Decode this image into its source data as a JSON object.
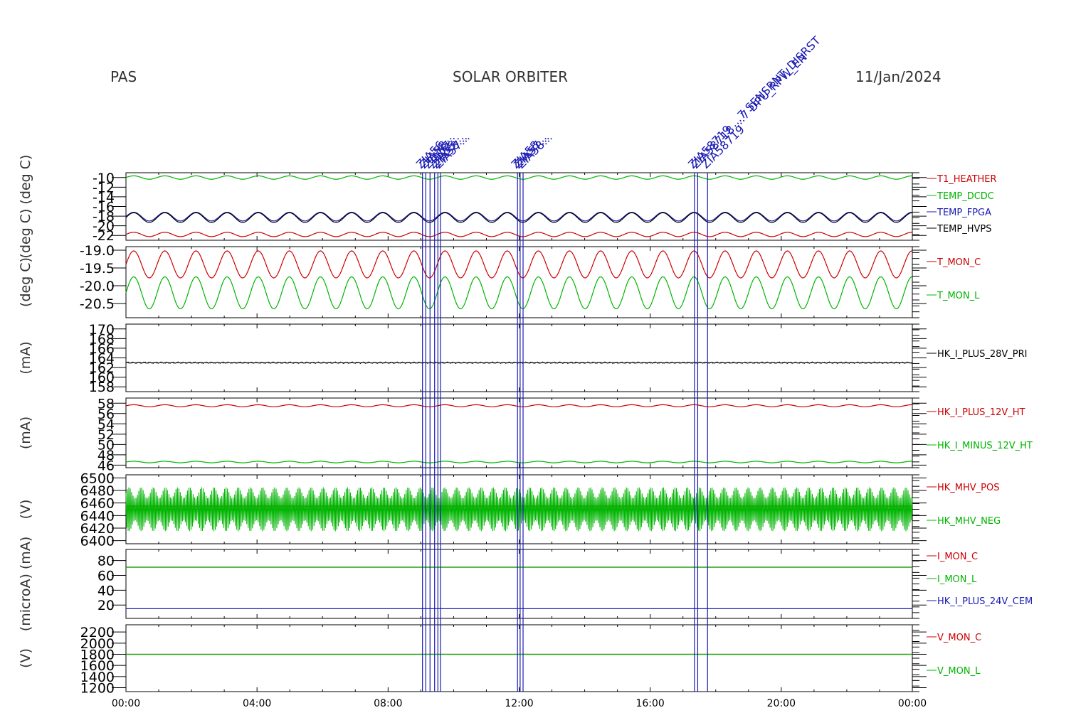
{
  "header": {
    "left": "PAS",
    "center": "SOLAR ORBITER",
    "right": "11/Jan/2024"
  },
  "colors": {
    "red": "#cc0000",
    "green": "#00b400",
    "blue": "#1a1ab4",
    "black": "#000000"
  },
  "chart_data": {
    "type": "line",
    "x_axis": {
      "label": "",
      "ticks": [
        "00:00",
        "04:00",
        "08:00",
        "12:00",
        "16:00",
        "20:00",
        "00:00"
      ],
      "range_hours": [
        0,
        24
      ]
    },
    "event_markers": {
      "color": "#1a1ab4",
      "times_hours": [
        9.05,
        9.15,
        9.28,
        9.42,
        9.52,
        9.6,
        11.95,
        12.03,
        12.12,
        17.35,
        17.45,
        17.75
      ],
      "labels": [
        "ZIA56...",
        "ZIA58...",
        "ZIA57...",
        "ZIA55...",
        "ZIA58...",
        "ZIA57...",
        "ZIA58...",
        "ZIA57...",
        "ZIA58...",
        "ZIA58719 ...7 SENSRNT_DISRST",
        "ZIA58718 ...7 DPU_RPW_EN",
        "ZIA58719"
      ]
    },
    "panels": [
      {
        "ylabel": "(deg C) (deg C)",
        "y_ticks": [
          "-10",
          "-12",
          "-14",
          "-16",
          "-18",
          "-20",
          "-22"
        ],
        "y_range": [
          -23,
          -9
        ],
        "series": [
          {
            "name": "T1_HEATHER",
            "color": "#cc0000",
            "mean": -21.8,
            "amp": 0.45,
            "period_h": 0.95
          },
          {
            "name": "TEMP_DCDC",
            "color": "#00b400",
            "mean": -10.0,
            "amp": 0.35,
            "period_h": 0.95
          },
          {
            "name": "TEMP_FPGA",
            "color": "#1a1ab4",
            "mean": -18.1,
            "amp": 0.9,
            "period_h": 0.95
          },
          {
            "name": "TEMP_HVPS",
            "color": "#000000",
            "mean": -18.3,
            "amp": 1.0,
            "period_h": 0.95
          }
        ]
      },
      {
        "ylabel": "(deg C)",
        "y_ticks": [
          "-19.0",
          "-19.5",
          "-20.0",
          "-20.5"
        ],
        "y_range": [
          -20.9,
          -18.9
        ],
        "series": [
          {
            "name": "T_MON_C",
            "color": "#cc0000",
            "mean": -19.4,
            "amp": 0.38,
            "period_h": 0.95
          },
          {
            "name": "T_MON_L",
            "color": "#00b400",
            "mean": -20.2,
            "amp": 0.45,
            "period_h": 0.95
          }
        ]
      },
      {
        "ylabel": "(mA)",
        "y_ticks": [
          "170",
          "168",
          "166",
          "164",
          "162",
          "160",
          "158"
        ],
        "y_range": [
          157,
          171
        ],
        "series": [
          {
            "name": "HK_I_PLUS_28V_PRI",
            "color": "#000000",
            "mean": 163.0,
            "amp": 0.15,
            "period_h": 0.3
          }
        ]
      },
      {
        "ylabel": "(mA)",
        "y_ticks": [
          "58",
          "56",
          "54",
          "52",
          "50",
          "48",
          "46"
        ],
        "y_range": [
          45.5,
          59
        ],
        "series": [
          {
            "name": "HK_I_PLUS_12V_HT",
            "color": "#cc0000",
            "mean": 57.5,
            "amp": 0.2,
            "period_h": 0.95
          },
          {
            "name": "HK_I_MINUS_12V_HT",
            "color": "#00b400",
            "mean": 46.6,
            "amp": 0.15,
            "period_h": 0.95
          }
        ]
      },
      {
        "ylabel": "(V)",
        "y_ticks": [
          "6500",
          "6480",
          "6460",
          "6440",
          "6420",
          "6400"
        ],
        "y_range": [
          6395,
          6505
        ],
        "series": [
          {
            "name": "HK_MHV_POS",
            "color": "#cc0000",
            "mean": 6455,
            "amp": 0,
            "period_h": 1
          },
          {
            "name": "HK_MHV_NEG",
            "color": "#00b400",
            "mean": 6450,
            "amp": 35,
            "period_h": 0.05
          }
        ]
      },
      {
        "ylabel": "(microA) (mA)",
        "y_ticks": [
          "80",
          "60",
          "40",
          "20"
        ],
        "y_range": [
          2,
          95
        ],
        "series": [
          {
            "name": "I_MON_C",
            "color": "#cc0000",
            "mean": 71,
            "amp": 0,
            "period_h": 1
          },
          {
            "name": "I_MON_L",
            "color": "#00b400",
            "mean": 71,
            "amp": 0,
            "period_h": 1
          },
          {
            "name": "HK_I_PLUS_24V_CEM",
            "color": "#1a1ab4",
            "mean": 15,
            "amp": 0,
            "period_h": 1
          }
        ]
      },
      {
        "ylabel": "(V)",
        "y_ticks": [
          "2200",
          "2000",
          "1800",
          "1600",
          "1400",
          "1200"
        ],
        "y_range": [
          1130,
          2330
        ],
        "series": [
          {
            "name": "V_MON_C",
            "color": "#cc0000",
            "mean": 1800,
            "amp": 0,
            "period_h": 1
          },
          {
            "name": "V_MON_L",
            "color": "#00b400",
            "mean": 1800,
            "amp": 0,
            "period_h": 1
          }
        ]
      }
    ]
  }
}
